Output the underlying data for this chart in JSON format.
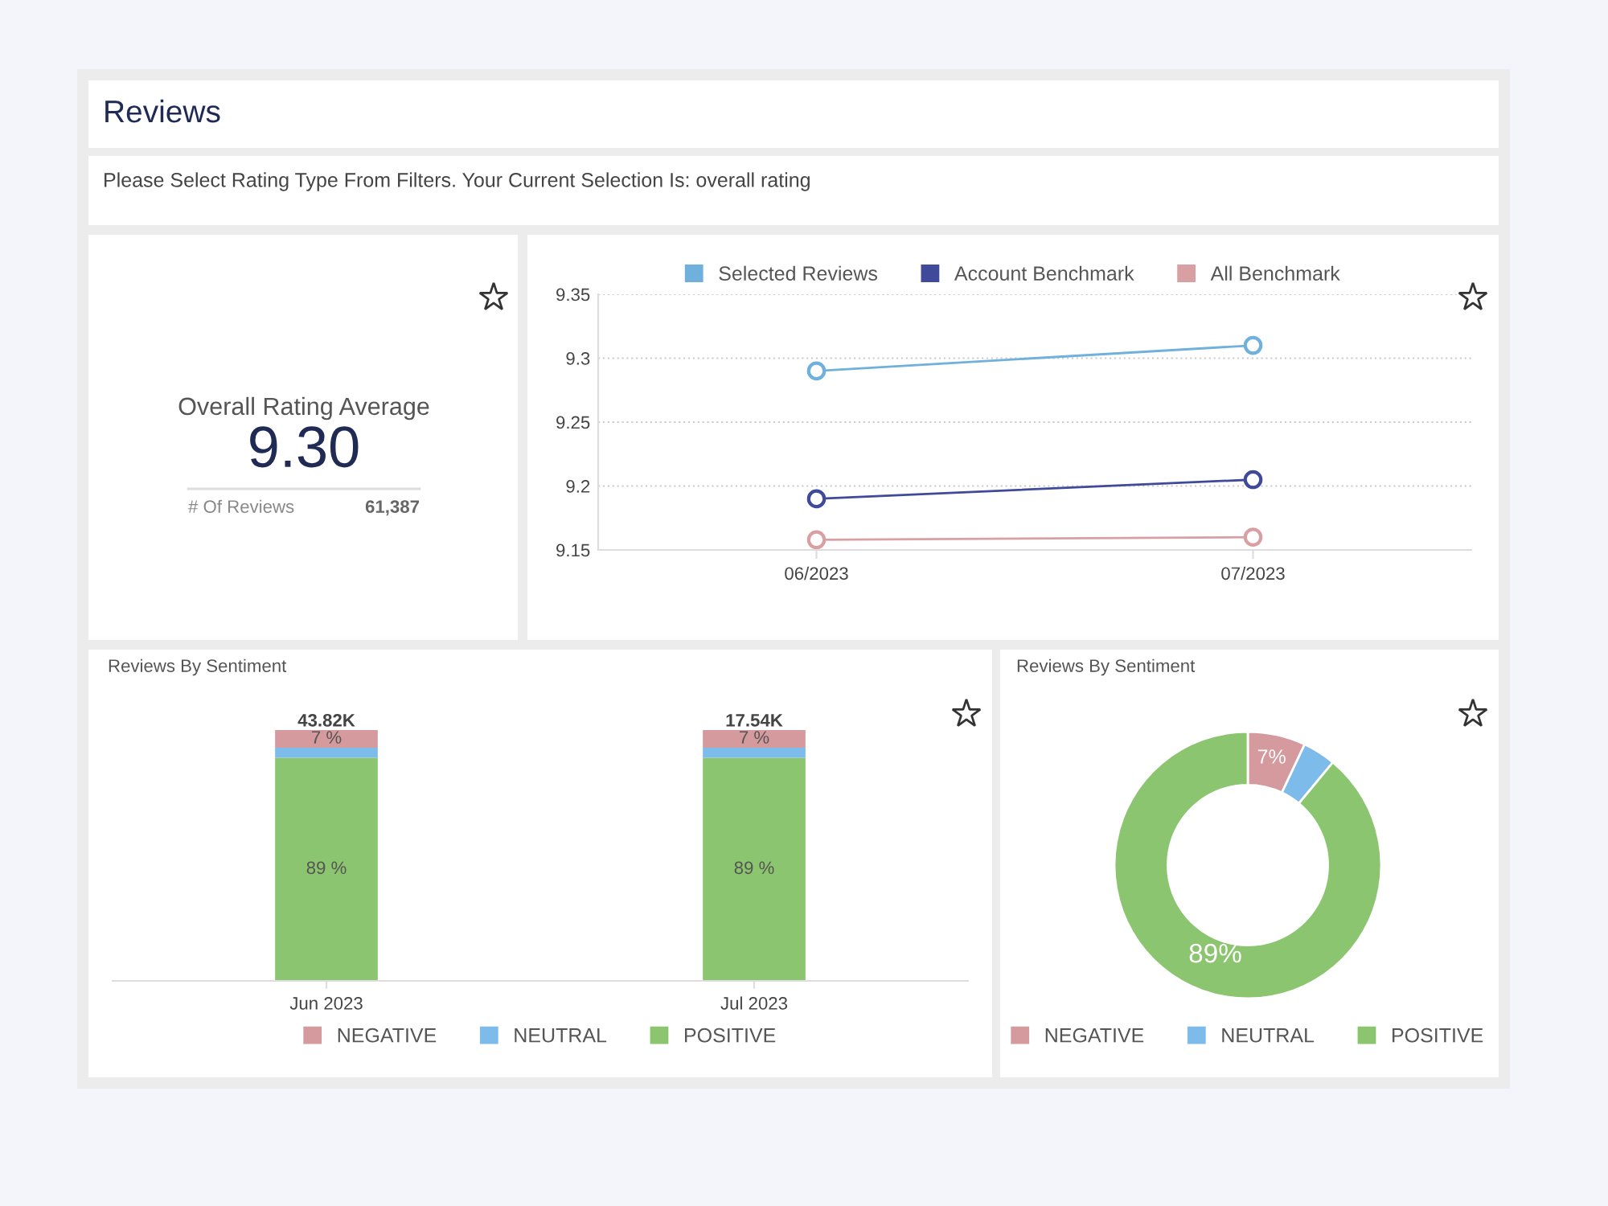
{
  "chart_data": [
    {
      "type": "other",
      "title": "Reviews",
      "subtitle": "Please Select Rating Type From Filters. Your Current Selection Is: overall rating"
    },
    {
      "type": "other",
      "title": "Overall Rating Average",
      "annotations": [
        "9.30",
        "# Of Reviews",
        "61,387"
      ]
    },
    {
      "type": "line",
      "categories": [
        "06/2023",
        "07/2023"
      ],
      "ylim": [
        9.15,
        9.35
      ],
      "yticks": [
        9.15,
        9.2,
        9.25,
        9.3,
        9.35
      ],
      "grid": "y",
      "legend": "top",
      "marker": "circle",
      "line_style": "solid",
      "series": [
        {
          "name": "Selected Reviews",
          "color": "#6fb0dc",
          "values": [
            9.29,
            9.31
          ]
        },
        {
          "name": "Account Benchmark",
          "color": "#3f4a9a",
          "values": [
            9.19,
            9.205
          ]
        },
        {
          "name": "All Benchmark",
          "color": "#d9a0a4",
          "values": [
            9.158,
            9.16
          ]
        }
      ]
    },
    {
      "type": "bar",
      "title": "Reviews By Sentiment",
      "categories": [
        "Jun 2023",
        "Jul 2023"
      ],
      "stacked": true,
      "legend": "bottom",
      "annotations": [
        {
          "text": "43.82K",
          "x": "Jun 2023",
          "y": 100
        },
        {
          "text": "17.54K",
          "x": "Jul 2023",
          "y": 100
        }
      ],
      "series": [
        {
          "name": "POSITIVE",
          "color": "#8cc56f",
          "values": [
            89,
            89
          ],
          "value_labels": [
            "89 %",
            "89 %"
          ]
        },
        {
          "name": "NEUTRAL",
          "color": "#7dbbea",
          "values": [
            4,
            4
          ],
          "value_labels": [
            null,
            null
          ]
        },
        {
          "name": "NEGATIVE",
          "color": "#d49a9d",
          "values": [
            7,
            7
          ],
          "value_labels": [
            "7 %",
            "7 %"
          ]
        }
      ]
    },
    {
      "type": "donut",
      "title": "Reviews By Sentiment",
      "categories": [
        "NEGATIVE",
        "NEUTRAL",
        "POSITIVE"
      ],
      "values": [
        7,
        4,
        89
      ],
      "colors": [
        "#d49a9d",
        "#7dbbea",
        "#8cc56f"
      ],
      "value_labels": [
        "7%",
        null,
        "89%"
      ],
      "legend": "bottom"
    }
  ]
}
